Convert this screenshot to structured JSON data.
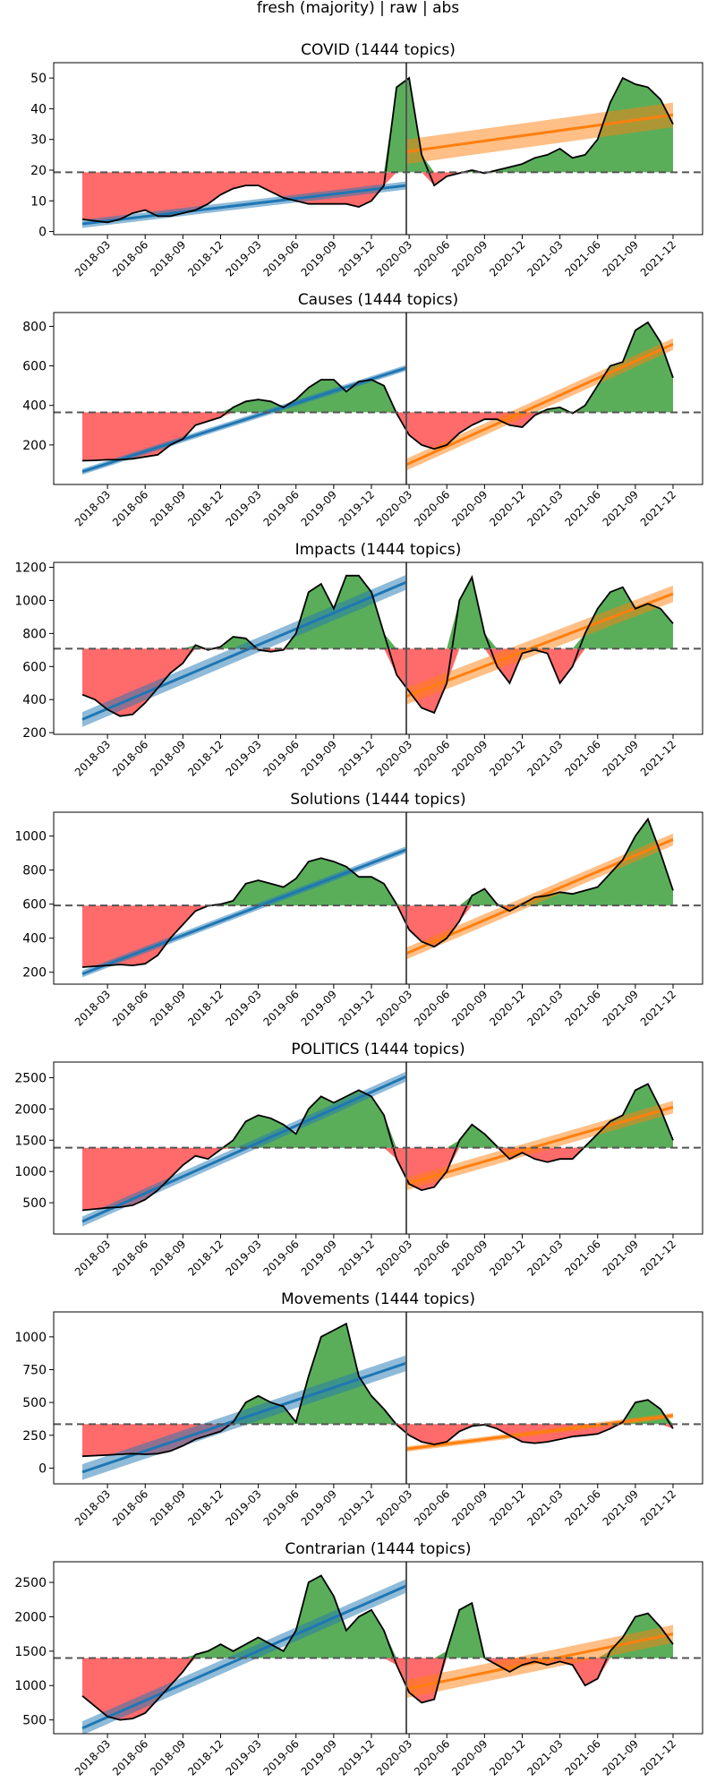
{
  "figure_title": "fresh (majority) | raw | abs",
  "x_ticks": [
    "2018-03",
    "2018-06",
    "2018-09",
    "2018-12",
    "2019-03",
    "2019-06",
    "2019-09",
    "2019-12",
    "2020-03",
    "2020-06",
    "2020-09",
    "2020-12",
    "2021-03",
    "2021-06",
    "2021-09",
    "2021-12"
  ],
  "colors": {
    "above": "#5aae5a",
    "below": "#ff6b6b",
    "pre_fit": "#1f77b4",
    "post_fit": "#ff7f0e",
    "baseline": "#555555",
    "split": "#555555"
  },
  "chart_data": [
    {
      "type": "area",
      "title": "COVID (1444 topics)",
      "ylim": [
        -1,
        55
      ],
      "yticks": [
        0,
        10,
        20,
        30,
        40,
        50
      ],
      "baseline": 19.3,
      "x": [
        "2018-01",
        "2018-02",
        "2018-03",
        "2018-04",
        "2018-05",
        "2018-06",
        "2018-07",
        "2018-08",
        "2018-09",
        "2018-10",
        "2018-11",
        "2018-12",
        "2019-01",
        "2019-02",
        "2019-03",
        "2019-04",
        "2019-05",
        "2019-06",
        "2019-07",
        "2019-08",
        "2019-09",
        "2019-10",
        "2019-11",
        "2019-12",
        "2020-01",
        "2020-02",
        "2020-03",
        "2020-04",
        "2020-05",
        "2020-06",
        "2020-07",
        "2020-08",
        "2020-09",
        "2020-10",
        "2020-11",
        "2020-12",
        "2021-01",
        "2021-02",
        "2021-03",
        "2021-04",
        "2021-05",
        "2021-06",
        "2021-07",
        "2021-08",
        "2021-09",
        "2021-10",
        "2021-11",
        "2021-12"
      ],
      "values": [
        4,
        3.5,
        3,
        4,
        6,
        7,
        5,
        5,
        6,
        7,
        9,
        12,
        14,
        15,
        15,
        13,
        11,
        10,
        9,
        9,
        9,
        9,
        8,
        10,
        15,
        47,
        50,
        25,
        15,
        18,
        19,
        20,
        19,
        20,
        21,
        22,
        24,
        25,
        27,
        24,
        25,
        30,
        42,
        50,
        48,
        47,
        43,
        35
      ],
      "fit_pre": {
        "start": 2.5,
        "end": 15,
        "ci": 1.3
      },
      "fit_post": {
        "start": 26,
        "end": 38,
        "ci": 4
      }
    },
    {
      "type": "area",
      "title": "Causes (1444 topics)",
      "ylim": [
        0,
        870
      ],
      "yticks": [
        200,
        400,
        600,
        800
      ],
      "baseline": 365,
      "x": [
        "2018-01",
        "2018-02",
        "2018-03",
        "2018-04",
        "2018-05",
        "2018-06",
        "2018-07",
        "2018-08",
        "2018-09",
        "2018-10",
        "2018-11",
        "2018-12",
        "2019-01",
        "2019-02",
        "2019-03",
        "2019-04",
        "2019-05",
        "2019-06",
        "2019-07",
        "2019-08",
        "2019-09",
        "2019-10",
        "2019-11",
        "2019-12",
        "2020-01",
        "2020-02",
        "2020-03",
        "2020-04",
        "2020-05",
        "2020-06",
        "2020-07",
        "2020-08",
        "2020-09",
        "2020-10",
        "2020-11",
        "2020-12",
        "2021-01",
        "2021-02",
        "2021-03",
        "2021-04",
        "2021-05",
        "2021-06",
        "2021-07",
        "2021-08",
        "2021-09",
        "2021-10",
        "2021-11",
        "2021-12"
      ],
      "values": [
        120,
        122,
        125,
        125,
        130,
        140,
        150,
        200,
        230,
        300,
        320,
        340,
        390,
        420,
        430,
        420,
        390,
        430,
        490,
        530,
        530,
        470,
        520,
        530,
        500,
        360,
        250,
        200,
        180,
        200,
        260,
        300,
        330,
        330,
        300,
        290,
        350,
        380,
        390,
        360,
        400,
        500,
        600,
        620,
        780,
        820,
        720,
        540
      ],
      "fit_pre": {
        "start": 65,
        "end": 590,
        "ci": 15
      },
      "fit_post": {
        "start": 100,
        "end": 710,
        "ci": 30
      }
    },
    {
      "type": "area",
      "title": "Impacts (1444 topics)",
      "ylim": [
        190,
        1230
      ],
      "yticks": [
        200,
        400,
        600,
        800,
        1000,
        1200
      ],
      "baseline": 708,
      "x": [
        "2018-01",
        "2018-02",
        "2018-03",
        "2018-04",
        "2018-05",
        "2018-06",
        "2018-07",
        "2018-08",
        "2018-09",
        "2018-10",
        "2018-11",
        "2018-12",
        "2019-01",
        "2019-02",
        "2019-03",
        "2019-04",
        "2019-05",
        "2019-06",
        "2019-07",
        "2019-08",
        "2019-09",
        "2019-10",
        "2019-11",
        "2019-12",
        "2020-01",
        "2020-02",
        "2020-03",
        "2020-04",
        "2020-05",
        "2020-06",
        "2020-07",
        "2020-08",
        "2020-09",
        "2020-10",
        "2020-11",
        "2020-12",
        "2021-01",
        "2021-02",
        "2021-03",
        "2021-04",
        "2021-05",
        "2021-06",
        "2021-07",
        "2021-08",
        "2021-09",
        "2021-10",
        "2021-11",
        "2021-12"
      ],
      "values": [
        430,
        400,
        340,
        300,
        310,
        380,
        470,
        560,
        620,
        730,
        700,
        720,
        780,
        770,
        700,
        690,
        700,
        800,
        1050,
        1100,
        950,
        1150,
        1150,
        1050,
        800,
        550,
        450,
        350,
        320,
        500,
        1000,
        1140,
        800,
        600,
        500,
        680,
        700,
        680,
        500,
        600,
        800,
        950,
        1050,
        1080,
        950,
        980,
        950,
        860
      ],
      "fit_pre": {
        "start": 280,
        "end": 1110,
        "ci": 45
      },
      "fit_post": {
        "start": 420,
        "end": 1040,
        "ci": 50
      }
    },
    {
      "type": "area",
      "title": "Solutions (1444 topics)",
      "ylim": [
        130,
        1140
      ],
      "yticks": [
        200,
        400,
        600,
        800,
        1000
      ],
      "baseline": 592,
      "x": [
        "2018-01",
        "2018-02",
        "2018-03",
        "2018-04",
        "2018-05",
        "2018-06",
        "2018-07",
        "2018-08",
        "2018-09",
        "2018-10",
        "2018-11",
        "2018-12",
        "2019-01",
        "2019-02",
        "2019-03",
        "2019-04",
        "2019-05",
        "2019-06",
        "2019-07",
        "2019-08",
        "2019-09",
        "2019-10",
        "2019-11",
        "2019-12",
        "2020-01",
        "2020-02",
        "2020-03",
        "2020-04",
        "2020-05",
        "2020-06",
        "2020-07",
        "2020-08",
        "2020-09",
        "2020-10",
        "2020-11",
        "2020-12",
        "2021-01",
        "2021-02",
        "2021-03",
        "2021-04",
        "2021-05",
        "2021-06",
        "2021-07",
        "2021-08",
        "2021-09",
        "2021-10",
        "2021-11",
        "2021-12"
      ],
      "values": [
        230,
        235,
        240,
        245,
        240,
        250,
        300,
        400,
        480,
        560,
        590,
        600,
        620,
        720,
        740,
        720,
        700,
        750,
        850,
        870,
        850,
        820,
        760,
        760,
        720,
        600,
        450,
        380,
        350,
        400,
        500,
        650,
        690,
        600,
        560,
        600,
        640,
        650,
        670,
        660,
        680,
        700,
        780,
        860,
        1000,
        1100,
        900,
        680
      ],
      "fit_pre": {
        "start": 190,
        "end": 920,
        "ci": 20
      },
      "fit_post": {
        "start": 310,
        "end": 980,
        "ci": 35
      }
    },
    {
      "type": "area",
      "title": "POLITICS (1444 topics)",
      "ylim": [
        0,
        2750
      ],
      "yticks": [
        500,
        1000,
        1500,
        2000,
        2500
      ],
      "baseline": 1380,
      "x": [
        "2018-01",
        "2018-02",
        "2018-03",
        "2018-04",
        "2018-05",
        "2018-06",
        "2018-07",
        "2018-08",
        "2018-09",
        "2018-10",
        "2018-11",
        "2018-12",
        "2019-01",
        "2019-02",
        "2019-03",
        "2019-04",
        "2019-05",
        "2019-06",
        "2019-07",
        "2019-08",
        "2019-09",
        "2019-10",
        "2019-11",
        "2019-12",
        "2020-01",
        "2020-02",
        "2020-03",
        "2020-04",
        "2020-05",
        "2020-06",
        "2020-07",
        "2020-08",
        "2020-09",
        "2020-10",
        "2020-11",
        "2020-12",
        "2021-01",
        "2021-02",
        "2021-03",
        "2021-04",
        "2021-05",
        "2021-06",
        "2021-07",
        "2021-08",
        "2021-09",
        "2021-10",
        "2021-11",
        "2021-12"
      ],
      "values": [
        380,
        400,
        420,
        430,
        460,
        550,
        700,
        900,
        1100,
        1250,
        1200,
        1350,
        1500,
        1800,
        1900,
        1850,
        1750,
        1600,
        2000,
        2200,
        2100,
        2200,
        2300,
        2200,
        1900,
        1200,
        800,
        700,
        750,
        1000,
        1500,
        1750,
        1600,
        1400,
        1200,
        1300,
        1200,
        1150,
        1200,
        1200,
        1400,
        1600,
        1800,
        1900,
        2300,
        2400,
        2000,
        1500
      ],
      "fit_pre": {
        "start": 200,
        "end": 2520,
        "ci": 80
      },
      "fit_post": {
        "start": 800,
        "end": 2030,
        "ci": 100
      }
    },
    {
      "type": "area",
      "title": "Movements (1444 topics)",
      "ylim": [
        -120,
        1190
      ],
      "yticks": [
        0,
        250,
        500,
        750,
        1000
      ],
      "baseline": 335,
      "x": [
        "2018-01",
        "2018-02",
        "2018-03",
        "2018-04",
        "2018-05",
        "2018-06",
        "2018-07",
        "2018-08",
        "2018-09",
        "2018-10",
        "2018-11",
        "2018-12",
        "2019-01",
        "2019-02",
        "2019-03",
        "2019-04",
        "2019-05",
        "2019-06",
        "2019-07",
        "2019-08",
        "2019-09",
        "2019-10",
        "2019-11",
        "2019-12",
        "2020-01",
        "2020-02",
        "2020-03",
        "2020-04",
        "2020-05",
        "2020-06",
        "2020-07",
        "2020-08",
        "2020-09",
        "2020-10",
        "2020-11",
        "2020-12",
        "2021-01",
        "2021-02",
        "2021-03",
        "2021-04",
        "2021-05",
        "2021-06",
        "2021-07",
        "2021-08",
        "2021-09",
        "2021-10",
        "2021-11",
        "2021-12"
      ],
      "values": [
        90,
        95,
        100,
        105,
        110,
        105,
        110,
        130,
        170,
        220,
        250,
        280,
        350,
        500,
        550,
        500,
        470,
        350,
        700,
        1000,
        1050,
        1100,
        700,
        550,
        450,
        330,
        250,
        200,
        180,
        200,
        280,
        320,
        330,
        300,
        250,
        200,
        190,
        200,
        220,
        240,
        250,
        260,
        300,
        350,
        500,
        520,
        450,
        300
      ],
      "fit_pre": {
        "start": -30,
        "end": 800,
        "ci": 60
      },
      "fit_post": {
        "start": 145,
        "end": 400,
        "ci": 20
      }
    },
    {
      "type": "area",
      "title": "Contrarian (1444 topics)",
      "ylim": [
        300,
        2800
      ],
      "yticks": [
        500,
        1000,
        1500,
        2000,
        2500
      ],
      "baseline": 1400,
      "x": [
        "2018-01",
        "2018-02",
        "2018-03",
        "2018-04",
        "2018-05",
        "2018-06",
        "2018-07",
        "2018-08",
        "2018-09",
        "2018-10",
        "2018-11",
        "2018-12",
        "2019-01",
        "2019-02",
        "2019-03",
        "2019-04",
        "2019-05",
        "2019-06",
        "2019-07",
        "2019-08",
        "2019-09",
        "2019-10",
        "2019-11",
        "2019-12",
        "2020-01",
        "2020-02",
        "2020-03",
        "2020-04",
        "2020-05",
        "2020-06",
        "2020-07",
        "2020-08",
        "2020-09",
        "2020-10",
        "2020-11",
        "2020-12",
        "2021-01",
        "2021-02",
        "2021-03",
        "2021-04",
        "2021-05",
        "2021-06",
        "2021-07",
        "2021-08",
        "2021-09",
        "2021-10",
        "2021-11",
        "2021-12"
      ],
      "values": [
        850,
        700,
        550,
        500,
        520,
        600,
        800,
        1000,
        1200,
        1450,
        1500,
        1600,
        1500,
        1600,
        1700,
        1600,
        1500,
        1800,
        2500,
        2600,
        2300,
        1800,
        2000,
        2100,
        1800,
        1300,
        900,
        750,
        800,
        1500,
        2100,
        2200,
        1400,
        1300,
        1200,
        1300,
        1350,
        1300,
        1350,
        1300,
        1000,
        1100,
        1500,
        1700,
        2000,
        2050,
        1850,
        1600
      ],
      "fit_pre": {
        "start": 380,
        "end": 2450,
        "ci": 100
      },
      "fit_post": {
        "start": 950,
        "end": 1750,
        "ci": 130
      }
    }
  ]
}
